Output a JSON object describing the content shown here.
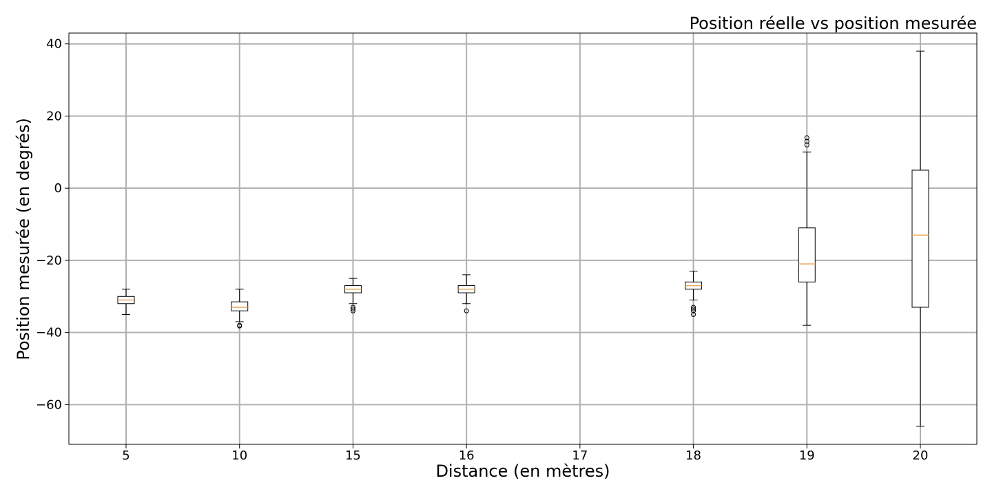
{
  "chart_data": {
    "type": "boxplot",
    "title": "Position réelle vs position mesurée",
    "xlabel": "Distance (en mètres)",
    "ylabel": "Position mesurée (en degrés)",
    "ylim": [
      -71,
      43
    ],
    "yticks": [
      40,
      20,
      0,
      -20,
      -40,
      -60
    ],
    "ytick_labels": [
      "40",
      "20",
      "0",
      "−20",
      "−40",
      "−60"
    ],
    "grid": true,
    "median_color": "#e8a85a",
    "categories": [
      "5",
      "10",
      "15",
      "16",
      "17",
      "18",
      "19",
      "20"
    ],
    "boxes": [
      {
        "category": "5",
        "whisker_low": -35,
        "q1": -32,
        "median": -31,
        "q3": -30,
        "whisker_high": -28,
        "outliers": []
      },
      {
        "category": "10",
        "whisker_low": -37,
        "q1": -34,
        "median": -33,
        "q3": -31.5,
        "whisker_high": -28,
        "outliers": [
          -38,
          -38.2
        ]
      },
      {
        "category": "15",
        "whisker_low": -32,
        "q1": -29,
        "median": -28,
        "q3": -27,
        "whisker_high": -25,
        "outliers": [
          -33,
          -33.5,
          -34
        ]
      },
      {
        "category": "16",
        "whisker_low": -32,
        "q1": -29,
        "median": -28,
        "q3": -27,
        "whisker_high": -24,
        "outliers": [
          -34
        ]
      },
      {
        "category": "17",
        "empty": true
      },
      {
        "category": "18",
        "whisker_low": -31,
        "q1": -28,
        "median": -27,
        "q3": -26,
        "whisker_high": -23,
        "outliers": [
          -33,
          -33.5,
          -34,
          -35
        ]
      },
      {
        "category": "19",
        "whisker_low": -38,
        "q1": -26,
        "median": -21,
        "q3": -11,
        "whisker_high": 10,
        "outliers": [
          12,
          13,
          14
        ]
      },
      {
        "category": "20",
        "whisker_low": -66,
        "q1": -33,
        "median": -13,
        "q3": 5,
        "whisker_high": 38,
        "outliers": []
      }
    ]
  }
}
